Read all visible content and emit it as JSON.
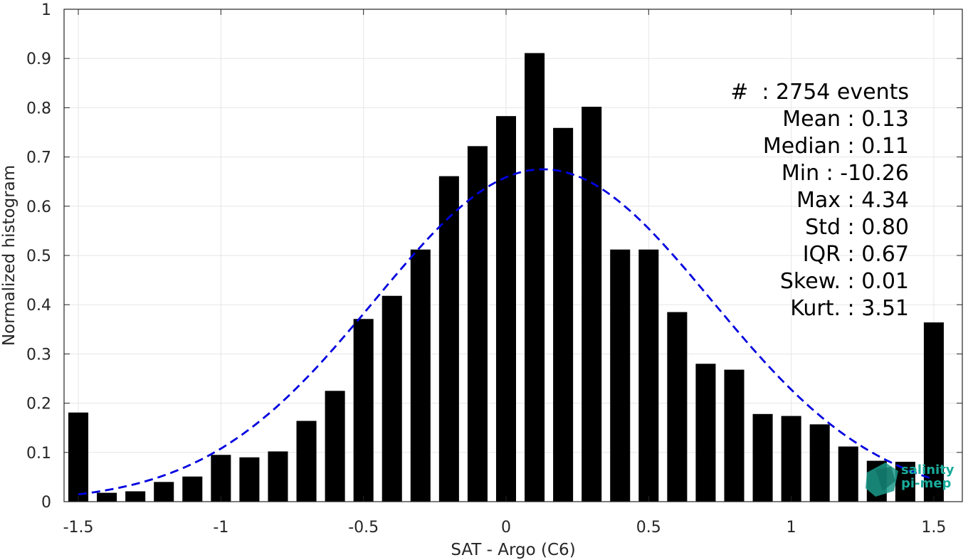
{
  "chart_data": {
    "type": "bar",
    "title": "",
    "xlabel": "SAT - Argo (C6)",
    "ylabel": "Normalized histogram",
    "xlim": [
      -1.55,
      1.6
    ],
    "ylim": [
      0,
      1
    ],
    "grid": true,
    "xticks": [
      -1.5,
      -1,
      -0.5,
      0,
      0.5,
      1,
      1.5
    ],
    "xtick_labels": [
      "-1.5",
      "-1",
      "-0.5",
      "0",
      "0.5",
      "1",
      "1.5"
    ],
    "yticks": [
      0,
      0.1,
      0.2,
      0.3,
      0.4,
      0.5,
      0.6,
      0.7,
      0.8,
      0.9,
      1
    ],
    "ytick_labels": [
      "0",
      "0.1",
      "0.2",
      "0.3",
      "0.4",
      "0.5",
      "0.6",
      "0.7",
      "0.8",
      "0.9",
      "1"
    ],
    "bar_width": 0.07,
    "series": [
      {
        "x": [
          -1.5,
          -1.4,
          -1.3,
          -1.2,
          -1.1,
          -1.0,
          -0.9,
          -0.8,
          -0.7,
          -0.6,
          -0.5,
          -0.4,
          -0.3,
          -0.2,
          -0.1,
          0.0,
          0.1,
          0.2,
          0.3,
          0.4,
          0.5,
          0.6,
          0.7,
          0.8,
          0.9,
          1.0,
          1.1,
          1.2,
          1.3,
          1.4,
          1.5
        ],
        "values": [
          0.181,
          0.018,
          0.021,
          0.04,
          0.051,
          0.095,
          0.09,
          0.102,
          0.164,
          0.225,
          0.371,
          0.418,
          0.512,
          0.661,
          0.722,
          0.783,
          0.911,
          0.759,
          0.802,
          0.512,
          0.512,
          0.385,
          0.28,
          0.268,
          0.178,
          0.174,
          0.157,
          0.112,
          0.083,
          0.081,
          0.364
        ],
        "color": "#000000"
      }
    ],
    "fit_curve": {
      "style": "dashed",
      "color": "#0000e0",
      "mean": 0.13,
      "std": 0.59,
      "peak": 0.675,
      "x_range": [
        -1.5,
        1.5
      ]
    },
    "stats": [
      "#  : 2754 events",
      "Mean : 0.13",
      "Median : 0.11",
      "Min : -10.26",
      "Max : 4.34",
      "Std : 0.80",
      "IQR : 0.67",
      "Skew. : 0.01",
      "Kurt. : 3.51"
    ]
  },
  "logo": {
    "line1": "salinity",
    "line2": "pi-mep",
    "text_color": "#1aab9b",
    "mark_color": "#1a9a8a"
  }
}
